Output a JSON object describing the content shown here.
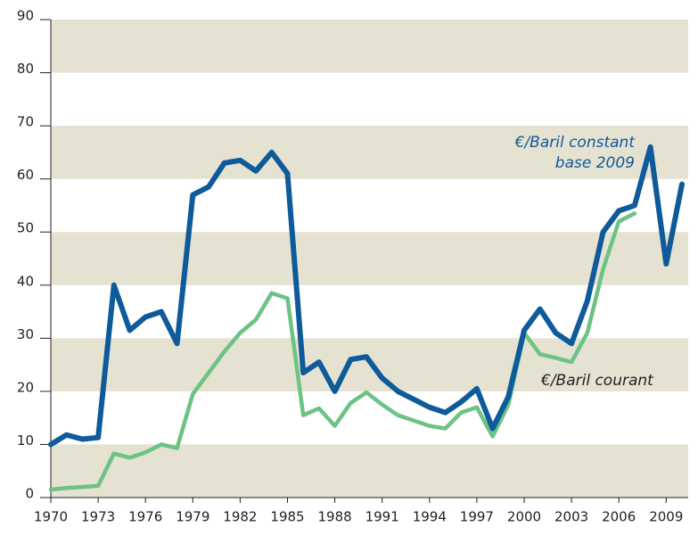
{
  "chart_data": {
    "type": "line",
    "x": [
      1970,
      1971,
      1972,
      1973,
      1974,
      1975,
      1976,
      1977,
      1978,
      1979,
      1980,
      1981,
      1982,
      1983,
      1984,
      1985,
      1986,
      1987,
      1988,
      1989,
      1990,
      1991,
      1992,
      1993,
      1994,
      1995,
      1996,
      1997,
      1998,
      1999,
      2000,
      2001,
      2002,
      2003,
      2004,
      2005,
      2006,
      2007,
      2008,
      2009,
      2010
    ],
    "series": [
      {
        "name": [
          "€/Baril constant",
          "base 2009"
        ],
        "color": "#0e5a9a",
        "values": [
          10,
          11.8,
          11,
          11.3,
          40,
          31.5,
          34,
          35,
          29,
          57,
          58.5,
          63,
          63.5,
          61.5,
          65,
          61,
          23.5,
          25.5,
          20,
          26,
          26.5,
          22.5,
          20,
          18.5,
          17,
          16,
          18,
          20.5,
          13,
          19,
          31.5,
          35.5,
          31,
          29,
          37,
          50,
          54,
          55,
          66,
          44,
          59
        ]
      },
      {
        "name": "€/Baril courant",
        "color": "#6cc383",
        "values": [
          1.5,
          1.8,
          2,
          2.2,
          8.3,
          7.5,
          8.5,
          10,
          9.3,
          19.5,
          23.5,
          27.5,
          31,
          33.5,
          38.5,
          37.5,
          15.5,
          16.8,
          13.5,
          17.8,
          19.8,
          17.5,
          15.5,
          14.5,
          13.5,
          13,
          16,
          17,
          11.5,
          17.5,
          31,
          27,
          26.3,
          25.5,
          31,
          43,
          52,
          53.5,
          null,
          null,
          null
        ]
      }
    ],
    "xlim": [
      1970,
      2010
    ],
    "xticks": [
      1970,
      1973,
      1976,
      1979,
      1982,
      1985,
      1988,
      1991,
      1994,
      1997,
      2000,
      2003,
      2006,
      2009
    ],
    "ylim": [
      0,
      90
    ],
    "yticks": [
      0,
      10,
      20,
      30,
      40,
      50,
      60,
      70,
      80,
      90
    ],
    "band_color": "#e6e2d2"
  }
}
